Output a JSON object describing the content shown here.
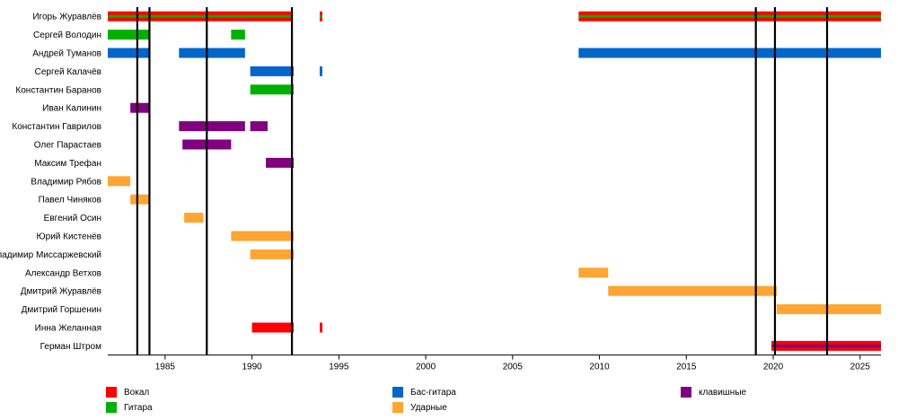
{
  "chart_data": {
    "type": "timeline",
    "x_range": [
      1981.7,
      2026.2
    ],
    "x_ticks": [
      "1985",
      "1990",
      "1995",
      "2000",
      "2005",
      "2010",
      "2015",
      "2020",
      "2025"
    ],
    "roles": {
      "vocal": {
        "label": "Вокал",
        "color": "#ff0000"
      },
      "guitar": {
        "label": "Гитара",
        "color": "#00b000"
      },
      "bass": {
        "label": "Бас-гитара",
        "color": "#0066cc"
      },
      "keys": {
        "label": "клавишные",
        "color": "#800080"
      },
      "drums": {
        "label": "Ударные",
        "color": "#ffa533"
      }
    },
    "legend": [
      {
        "role": "vocal",
        "label": "Вокал"
      },
      {
        "role": "guitar",
        "label": "Гитара"
      },
      {
        "role": "bass",
        "label": "Бас-гитара"
      },
      {
        "role": "drums",
        "label": "Ударные"
      },
      {
        "role": "keys",
        "label": "клавишные"
      }
    ],
    "members": [
      {
        "name": "Игорь Журавлёв",
        "bars": [
          {
            "role": "vocal",
            "start": 1981.7,
            "end": 1992.3
          },
          {
            "role": "guitar",
            "start": 1981.7,
            "end": 1992.3,
            "thin": true
          },
          {
            "role": "vocal",
            "start": 1993.9,
            "end": 1994.05
          },
          {
            "role": "guitar",
            "start": 1993.9,
            "end": 1994.05,
            "thin": true
          },
          {
            "role": "vocal",
            "start": 2008.8,
            "end": 2026.2
          },
          {
            "role": "guitar",
            "start": 2008.8,
            "end": 2026.2,
            "thin": true
          }
        ]
      },
      {
        "name": "Сергей Володин",
        "bars": [
          {
            "role": "guitar",
            "start": 1981.7,
            "end": 1984.1
          },
          {
            "role": "guitar",
            "start": 1988.8,
            "end": 1989.6
          }
        ]
      },
      {
        "name": "Андрей Туманов",
        "bars": [
          {
            "role": "bass",
            "start": 1981.7,
            "end": 1984.1
          },
          {
            "role": "bass",
            "start": 1985.8,
            "end": 1989.6
          },
          {
            "role": "bass",
            "start": 2008.8,
            "end": 2026.2
          }
        ]
      },
      {
        "name": "Сергей Калачёв",
        "bars": [
          {
            "role": "bass",
            "start": 1989.9,
            "end": 1992.4
          },
          {
            "role": "bass",
            "start": 1993.9,
            "end": 1994.05
          }
        ]
      },
      {
        "name": "Константин Баранов",
        "bars": [
          {
            "role": "guitar",
            "start": 1989.9,
            "end": 1992.4
          }
        ]
      },
      {
        "name": "Иван Калинин",
        "bars": [
          {
            "role": "keys",
            "start": 1983.0,
            "end": 1984.1
          }
        ]
      },
      {
        "name": "Константин Гаврилов",
        "bars": [
          {
            "role": "keys",
            "start": 1985.8,
            "end": 1989.6
          },
          {
            "role": "keys",
            "start": 1989.9,
            "end": 1990.9
          }
        ]
      },
      {
        "name": "Олег Парастаев",
        "bars": [
          {
            "role": "keys",
            "start": 1986.0,
            "end": 1988.8
          }
        ]
      },
      {
        "name": "Максим Трефан",
        "bars": [
          {
            "role": "keys",
            "start": 1990.8,
            "end": 1992.4
          }
        ]
      },
      {
        "name": "Владимир Рябов",
        "bars": [
          {
            "role": "drums",
            "start": 1981.7,
            "end": 1983.0
          }
        ]
      },
      {
        "name": "Павел Чиняков",
        "bars": [
          {
            "role": "drums",
            "start": 1983.0,
            "end": 1984.1
          }
        ]
      },
      {
        "name": "Евгений Осин",
        "bars": [
          {
            "role": "drums",
            "start": 1986.1,
            "end": 1987.2
          }
        ]
      },
      {
        "name": "Юрий Кистенёв",
        "bars": [
          {
            "role": "drums",
            "start": 1988.8,
            "end": 1992.4
          }
        ]
      },
      {
        "name": "Владимир Миссаржевский",
        "bars": [
          {
            "role": "drums",
            "start": 1989.9,
            "end": 1992.4
          }
        ]
      },
      {
        "name": "Александр Ветхов",
        "bars": [
          {
            "role": "drums",
            "start": 2008.8,
            "end": 2010.5
          }
        ]
      },
      {
        "name": "Дмитрий Журавлёв",
        "bars": [
          {
            "role": "drums",
            "start": 2010.5,
            "end": 2020.2
          }
        ]
      },
      {
        "name": "Дмитрий Горшенин",
        "bars": [
          {
            "role": "drums",
            "start": 2020.2,
            "end": 2026.2
          }
        ]
      },
      {
        "name": "Инна Желанная",
        "bars": [
          {
            "role": "vocal",
            "start": 1990.0,
            "end": 1992.4
          },
          {
            "role": "vocal",
            "start": 1993.9,
            "end": 1994.05
          }
        ]
      },
      {
        "name": "Герман Штром",
        "bars": [
          {
            "role": "vocal",
            "start": 2019.9,
            "end": 2026.2
          },
          {
            "role": "keys",
            "start": 2019.9,
            "end": 2026.2,
            "thin": true
          }
        ]
      }
    ],
    "event_lines": [
      1983.4,
      1984.1,
      1987.4,
      1992.3,
      2019.0,
      2020.1,
      2023.1
    ]
  }
}
